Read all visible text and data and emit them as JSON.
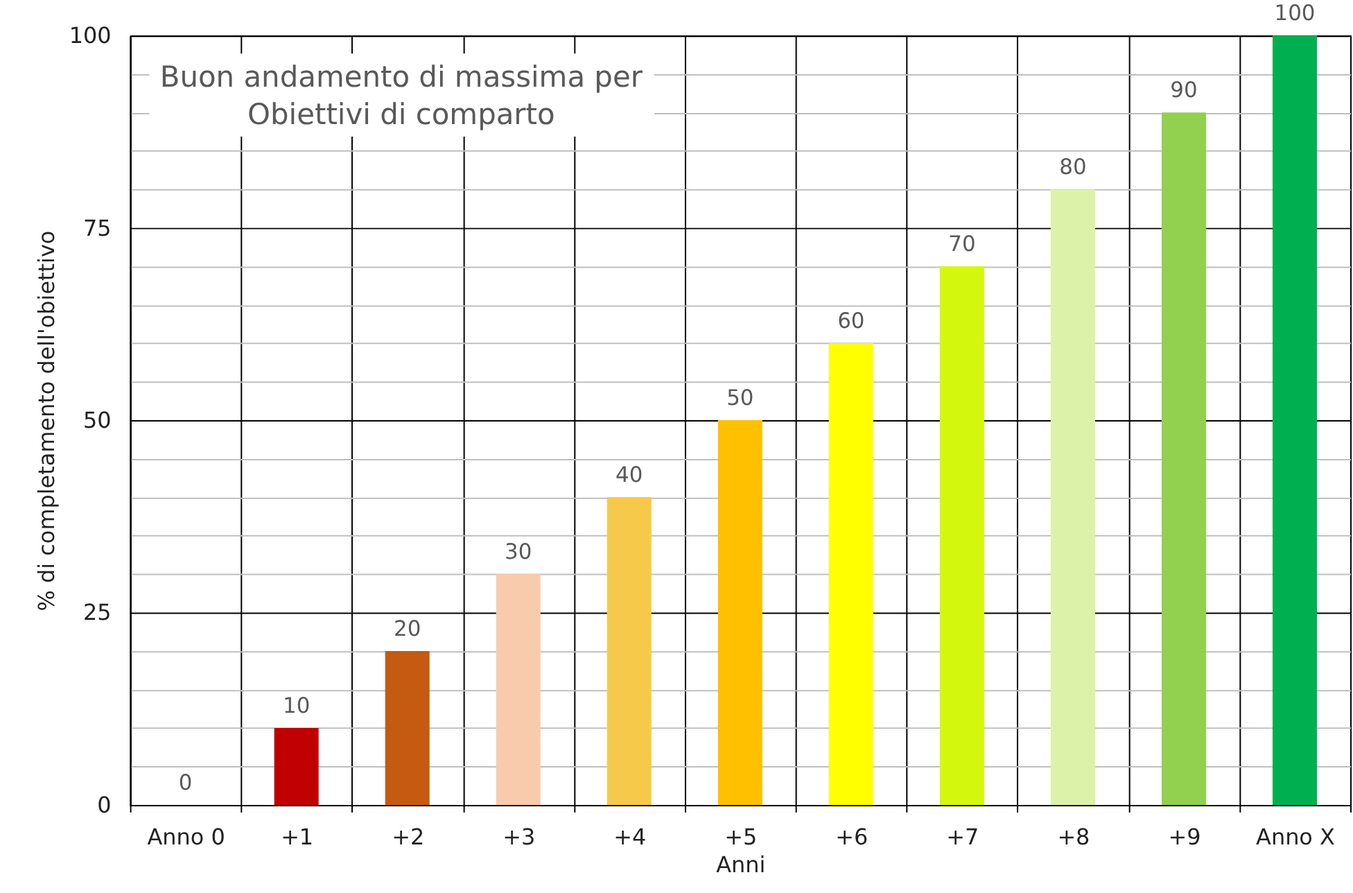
{
  "chart_data": {
    "type": "bar",
    "title": "Buon andamento di massima per\nObiettivi di comparto",
    "categories": [
      "Anno 0",
      "+1",
      "+2",
      "+3",
      "+4",
      "+5",
      "+6",
      "+7",
      "+8",
      "+9",
      "Anno X"
    ],
    "values": [
      0,
      10,
      20,
      30,
      40,
      50,
      60,
      70,
      80,
      90,
      100
    ],
    "colors": [
      "#c00000",
      "#c00000",
      "#c55a11",
      "#f8cbad",
      "#f7c94b",
      "#ffc000",
      "#ffff00",
      "#d4f80d",
      "#ddf2a9",
      "#92d050",
      "#00b050"
    ],
    "xlabel": "Anni",
    "ylabel": "% di completamento dell'obiettivo",
    "ylim": [
      0,
      100
    ],
    "yticks": [
      0,
      {
        "value": 5,
        "label": null
      },
      {
        "value": 10,
        "label": null
      },
      {
        "value": 15,
        "label": null
      },
      {
        "value": 20,
        "label": null
      },
      25,
      {
        "value": 30,
        "label": null
      },
      {
        "value": 35,
        "label": null
      },
      {
        "value": 40,
        "label": null
      },
      {
        "value": 45,
        "label": null
      },
      50,
      {
        "value": 55,
        "label": null
      },
      {
        "value": 60,
        "label": null
      },
      {
        "value": 65,
        "label": null
      },
      {
        "value": 70,
        "label": null
      },
      75,
      {
        "value": 80,
        "label": null
      },
      {
        "value": 85,
        "label": null
      },
      {
        "value": 90,
        "label": null
      },
      {
        "value": 95,
        "label": null
      },
      100
    ],
    "grid": true,
    "legend": false,
    "data_labels": true
  }
}
